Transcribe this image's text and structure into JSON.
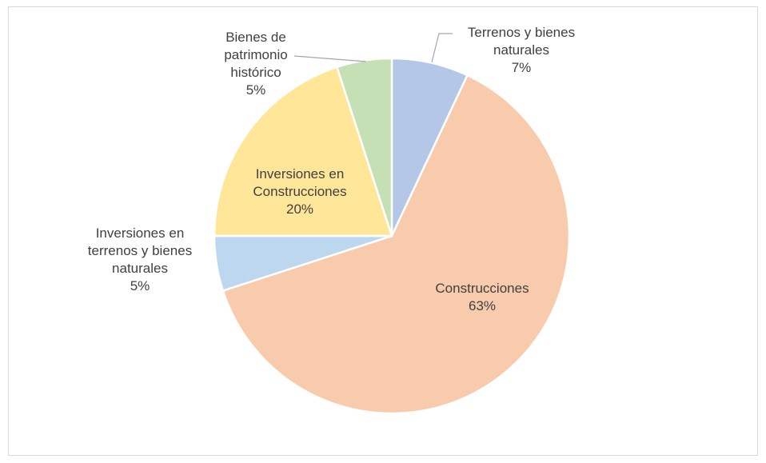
{
  "chart_data": {
    "type": "pie",
    "categories": [
      "Terrenos y bienes naturales",
      "Construcciones",
      "Inversiones en terrenos y bienes naturales",
      "Inversiones en Construcciones",
      "Bienes de patrimonio histórico"
    ],
    "values": [
      7,
      63,
      5,
      20,
      5
    ],
    "value_labels": [
      "7%",
      "63%",
      "5%",
      "20%",
      "5%"
    ],
    "colors": [
      "#b4c7e7",
      "#f8cbad",
      "#bdd7ee",
      "#ffe699",
      "#c5e0b4"
    ]
  }
}
